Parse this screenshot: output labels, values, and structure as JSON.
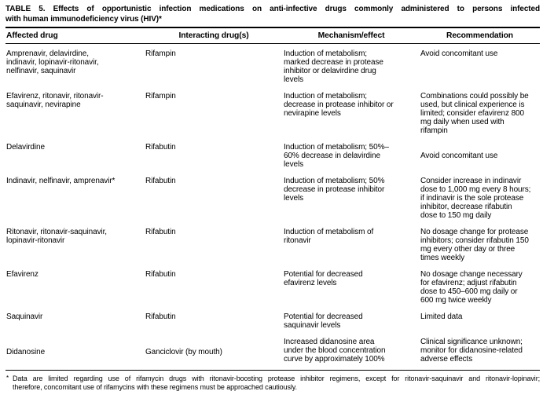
{
  "colors": {
    "background": "#ffffff",
    "text": "#000000",
    "rule": "#000000"
  },
  "table": {
    "title_lines": [
      "TABLE 5. Effects of opportunistic infection medications on anti-infective drugs commonly administered to persons infected",
      "with human immunodeficiency virus (HIV)*"
    ],
    "columns": [
      "Affected drug",
      "Interacting drug(s)",
      "Mechanism/effect",
      "Recommendation"
    ],
    "rows": [
      {
        "affected_drug": "Amprenavir, delavirdine,\nindinavir, lopinavir-ritonavir,\nnelfinavir, saquinavir",
        "interacting_drug": "Rifampin",
        "mechanism": "Induction of metabolism;\nmarked decrease in protease\ninhibitor or delavirdine drug\nlevels",
        "recommendation": "Avoid concomitant use"
      },
      {
        "affected_drug": "Efavirenz, ritonavir, ritonavir-\nsaquinavir, nevirapine",
        "interacting_drug": "Rifampin",
        "mechanism": "Induction of metabolism;\ndecrease in protease inhibitor or\nnevirapine levels",
        "recommendation": "Combinations could possibly be\nused, but clinical experience is\nlimited; consider efavirenz 800\nmg daily when used with\nrifampin"
      },
      {
        "affected_drug": "Delavirdine",
        "interacting_drug": "Rifabutin",
        "mechanism": "Induction of metabolism; 50%–\n60% decrease in delavirdine\nlevels",
        "recommendation": "Avoid concomitant use"
      },
      {
        "affected_drug": "Indinavir, nelfinavir, amprenavir*",
        "interacting_drug": "Rifabutin",
        "mechanism": "Induction of metabolism; 50%\ndecrease in protease inhibitor\nlevels",
        "recommendation": "Consider increase in indinavir\ndose to 1,000 mg every 8 hours;\nif indinavir is the sole protease\ninhibitor, decrease rifabutin\ndose to 150 mg daily"
      },
      {
        "affected_drug": "Ritonavir, ritonavir-saquinavir,\nlopinavir-ritonavir",
        "interacting_drug": "Rifabutin",
        "mechanism": "Induction of metabolism of\nritonavir",
        "recommendation": "No dosage change for protease\ninhibitors; consider rifabutin 150\nmg every other day or three\ntimes weekly"
      },
      {
        "affected_drug": "Efavirenz",
        "interacting_drug": "Rifabutin",
        "mechanism": "Potential for decreased\nefavirenz levels",
        "recommendation": "No dosage change necessary\nfor efavirenz; adjust rifabutin\ndose to 450–600 mg daily or\n600 mg twice weekly"
      },
      {
        "affected_drug": "Saquinavir",
        "interacting_drug": "Rifabutin",
        "mechanism": "Potential for decreased\nsaquinavir levels",
        "recommendation": "Limited data"
      },
      {
        "affected_drug": "Didanosine",
        "interacting_drug": "Ganciclovir (by mouth)",
        "mechanism": "Increased didanosine area\nunder the blood concentration\ncurve by approximately 100%",
        "recommendation": "Clinical significance unknown;\nmonitor for didanosine-related\nadverse effects"
      }
    ],
    "footnote_marker": "*",
    "footnote_lines": [
      "Data are limited regarding use of rifamycin drugs with ritonavir-boosting protease inhibitor regimens, except for ritonavir-saquinavir and ritonavir-lopinavir;",
      "therefore, concomitant use of rifamycins with these regimens must be approached cautiously."
    ]
  }
}
